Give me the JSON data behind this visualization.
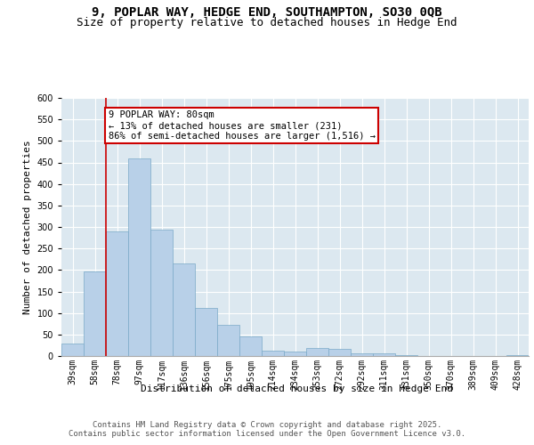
{
  "title_line1": "9, POPLAR WAY, HEDGE END, SOUTHAMPTON, SO30 0QB",
  "title_line2": "Size of property relative to detached houses in Hedge End",
  "xlabel": "Distribution of detached houses by size in Hedge End",
  "ylabel": "Number of detached properties",
  "bar_color": "#b8d0e8",
  "bar_edge_color": "#7aaac8",
  "background_color": "#dce8f0",
  "grid_color": "#ffffff",
  "annotation_line_color": "#cc0000",
  "annotation_box_color": "#cc0000",
  "annotation_text": "9 POPLAR WAY: 80sqm\n← 13% of detached houses are smaller (231)\n86% of semi-detached houses are larger (1,516) →",
  "categories": [
    "39sqm",
    "58sqm",
    "78sqm",
    "97sqm",
    "117sqm",
    "136sqm",
    "156sqm",
    "175sqm",
    "195sqm",
    "214sqm",
    "234sqm",
    "253sqm",
    "272sqm",
    "292sqm",
    "311sqm",
    "331sqm",
    "350sqm",
    "370sqm",
    "389sqm",
    "409sqm",
    "428sqm"
  ],
  "values": [
    28,
    197,
    290,
    460,
    293,
    215,
    112,
    73,
    46,
    13,
    10,
    18,
    17,
    6,
    7,
    3,
    0,
    0,
    0,
    0,
    3
  ],
  "ylim": [
    0,
    600
  ],
  "yticks": [
    0,
    50,
    100,
    150,
    200,
    250,
    300,
    350,
    400,
    450,
    500,
    550,
    600
  ],
  "vline_x": 1.5,
  "footer": "Contains HM Land Registry data © Crown copyright and database right 2025.\nContains public sector information licensed under the Open Government Licence v3.0.",
  "title_fontsize": 10,
  "subtitle_fontsize": 9,
  "axis_label_fontsize": 8,
  "tick_fontsize": 7,
  "annotation_fontsize": 7.5,
  "footer_fontsize": 6.5
}
